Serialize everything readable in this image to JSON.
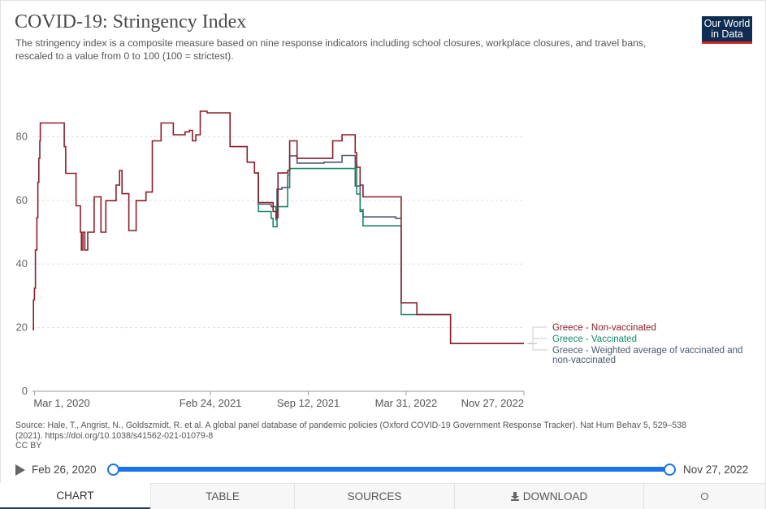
{
  "header": {
    "title": "COVID-19: Stringency Index",
    "subtitle": "The stringency index is a composite measure based on nine response indicators including school closures, workplace closures, and travel bans, rescaled to a value from 0 to 100 (100 = strictest).",
    "logo_line1": "Our World",
    "logo_line2": "in Data"
  },
  "source": {
    "line1": "Source: Hale, T., Angrist, N., Goldszmidt, R. et al. A global panel database of pandemic policies (Oxford COVID-19 Government Response Tracker). Nat Hum Behav 5, 529–538",
    "line2": "(2021). https://doi.org/10.1038/s41562-021-01079-8",
    "line3": "CC BY"
  },
  "timeline": {
    "start_label": "Feb 26, 2020",
    "end_label": "Nov 27, 2022"
  },
  "tabs": {
    "chart": "CHART",
    "table": "TABLE",
    "sources": "SOURCES",
    "download": "DOWNLOAD"
  },
  "colors": {
    "non_vaccinated": "#8b1d2c",
    "vaccinated": "#19896b",
    "weighted": "#4b5870",
    "grid": "#dddddd",
    "accent": "#1a73e8"
  },
  "chart_data": {
    "type": "line",
    "x_axis": "date",
    "xlim": [
      "2020-02-26",
      "2022-11-27"
    ],
    "ylim": [
      0,
      100
    ],
    "y_ticks": [
      0,
      20,
      40,
      60,
      80
    ],
    "x_ticks": [
      {
        "date": "2020-03-01",
        "label": "Mar 1, 2020"
      },
      {
        "date": "2021-02-24",
        "label": "Feb 24, 2021"
      },
      {
        "date": "2021-09-12",
        "label": "Sep 12, 2021"
      },
      {
        "date": "2022-03-31",
        "label": "Mar 31, 2022"
      },
      {
        "date": "2022-11-27",
        "label": "Nov 27, 2022"
      }
    ],
    "grid": true,
    "legend_position": "right",
    "series": [
      {
        "name": "Greece - Weighted average of vaccinated and non-vaccinated",
        "color": "#4b5870",
        "points": [
          [
            "2021-06-01",
            68.6
          ],
          [
            "2021-06-02",
            58.8
          ],
          [
            "2021-06-28",
            58.0
          ],
          [
            "2021-07-08",
            53.9
          ],
          [
            "2021-07-10",
            63.5
          ],
          [
            "2021-07-20",
            64.0
          ],
          [
            "2021-08-01",
            68.0
          ],
          [
            "2021-08-05",
            74.0
          ],
          [
            "2021-08-20",
            71.7
          ],
          [
            "2021-10-14",
            72.0
          ],
          [
            "2021-11-20",
            74.1
          ],
          [
            "2021-12-17",
            64.5
          ],
          [
            "2021-12-27",
            57.0
          ],
          [
            "2022-01-02",
            54.8
          ],
          [
            "2022-03-10",
            54.3
          ],
          [
            "2022-03-20",
            54.3
          ]
        ]
      },
      {
        "name": "Greece - Vaccinated",
        "color": "#19896b",
        "points": [
          [
            "2021-06-01",
            68.6
          ],
          [
            "2021-06-02",
            56.5
          ],
          [
            "2021-06-28",
            54.3
          ],
          [
            "2021-07-02",
            51.7
          ],
          [
            "2021-07-10",
            58.0
          ],
          [
            "2021-08-01",
            64.0
          ],
          [
            "2021-08-05",
            70.0
          ],
          [
            "2021-12-17",
            71.3
          ],
          [
            "2021-12-20",
            62.0
          ],
          [
            "2021-12-27",
            56.5
          ],
          [
            "2022-01-02",
            52.0
          ],
          [
            "2022-03-20",
            52.0
          ],
          [
            "2022-03-21",
            24.1
          ],
          [
            "2022-04-20",
            24.1
          ],
          [
            "2022-06-01",
            24.1
          ],
          [
            "2022-06-30",
            15.0
          ],
          [
            "2022-11-27",
            15.0
          ]
        ]
      },
      {
        "name": "Greece - Non-vaccinated",
        "color": "#8b1d2c",
        "points": [
          [
            "2020-02-26",
            19.4
          ],
          [
            "2020-02-28",
            28.7
          ],
          [
            "2020-03-01",
            32.4
          ],
          [
            "2020-03-03",
            44.4
          ],
          [
            "2020-03-06",
            54.6
          ],
          [
            "2020-03-08",
            65.7
          ],
          [
            "2020-03-10",
            73.2
          ],
          [
            "2020-03-12",
            78.7
          ],
          [
            "2020-03-13",
            84.3
          ],
          [
            "2020-04-26",
            84.3
          ],
          [
            "2020-05-01",
            76.9
          ],
          [
            "2020-05-04",
            68.5
          ],
          [
            "2020-05-25",
            58.3
          ],
          [
            "2020-06-03",
            50.0
          ],
          [
            "2020-06-05",
            44.4
          ],
          [
            "2020-06-08",
            50.0
          ],
          [
            "2020-06-12",
            44.4
          ],
          [
            "2020-06-18",
            50.0
          ],
          [
            "2020-06-25",
            50.0
          ],
          [
            "2020-07-01",
            61.1
          ],
          [
            "2020-07-15",
            50.0
          ],
          [
            "2020-07-25",
            59.9
          ],
          [
            "2020-08-15",
            64.8
          ],
          [
            "2020-08-22",
            69.4
          ],
          [
            "2020-08-27",
            62.1
          ],
          [
            "2020-09-10",
            50.5
          ],
          [
            "2020-09-25",
            59.9
          ],
          [
            "2020-10-15",
            62.6
          ],
          [
            "2020-10-28",
            78.7
          ],
          [
            "2020-11-15",
            84.3
          ],
          [
            "2020-12-10",
            80.6
          ],
          [
            "2021-01-03",
            81.5
          ],
          [
            "2021-01-12",
            82.0
          ],
          [
            "2021-01-18",
            78.7
          ],
          [
            "2021-01-25",
            80.6
          ],
          [
            "2021-02-03",
            88.0
          ],
          [
            "2021-02-17",
            87.5
          ],
          [
            "2021-03-10",
            87.5
          ],
          [
            "2021-04-05",
            76.9
          ],
          [
            "2021-05-10",
            72.0
          ],
          [
            "2021-05-25",
            68.6
          ],
          [
            "2021-06-02",
            59.3
          ],
          [
            "2021-06-28",
            59.3
          ],
          [
            "2021-07-02",
            56.5
          ],
          [
            "2021-07-08",
            54.6
          ],
          [
            "2021-07-12",
            68.6
          ],
          [
            "2021-08-01",
            69.4
          ],
          [
            "2021-08-05",
            78.7
          ],
          [
            "2021-08-20",
            73.2
          ],
          [
            "2021-10-20",
            73.2
          ],
          [
            "2021-11-01",
            78.7
          ],
          [
            "2021-11-20",
            80.6
          ],
          [
            "2021-12-17",
            75.0
          ],
          [
            "2021-12-20",
            70.4
          ],
          [
            "2021-12-27",
            64.8
          ],
          [
            "2022-01-02",
            61.1
          ],
          [
            "2022-03-20",
            61.1
          ],
          [
            "2022-03-21",
            27.8
          ],
          [
            "2022-04-20",
            27.8
          ],
          [
            "2022-04-22",
            24.1
          ],
          [
            "2022-06-01",
            24.1
          ],
          [
            "2022-06-30",
            15.0
          ],
          [
            "2022-11-27",
            15.0
          ]
        ]
      }
    ]
  }
}
